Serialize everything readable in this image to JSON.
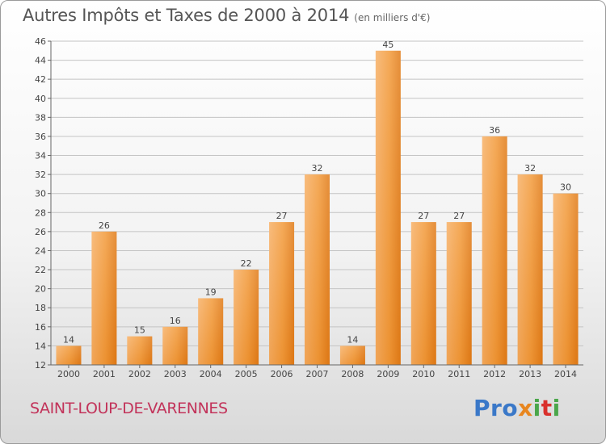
{
  "title": "Autres Impôts et Taxes de 2000 à 2014",
  "unit_label": "(en milliers d'€)",
  "commune": "SAINT-LOUP-DE-VARENNES",
  "brand": {
    "p1": "Pro",
    "p2": "x",
    "p3": "i",
    "p4": "t",
    "p5": "i"
  },
  "colors": {
    "bar": "#f0952f",
    "bar_light": "#f5a955",
    "bar_dark": "#e07a17",
    "grid": "#bbbbbb",
    "text": "#444444"
  },
  "chart_data": {
    "type": "bar",
    "categories": [
      "2000",
      "2001",
      "2002",
      "2003",
      "2004",
      "2005",
      "2006",
      "2007",
      "2008",
      "2009",
      "2010",
      "2011",
      "2012",
      "2013",
      "2014"
    ],
    "values": [
      14,
      26,
      15,
      16,
      19,
      22,
      27,
      32,
      14,
      45,
      27,
      27,
      36,
      32,
      30
    ],
    "ylim": [
      12,
      46
    ],
    "yticks": [
      12,
      14,
      16,
      18,
      20,
      22,
      24,
      26,
      28,
      30,
      32,
      34,
      36,
      38,
      40,
      42,
      44,
      46
    ],
    "grid": true,
    "data_labels": true
  }
}
